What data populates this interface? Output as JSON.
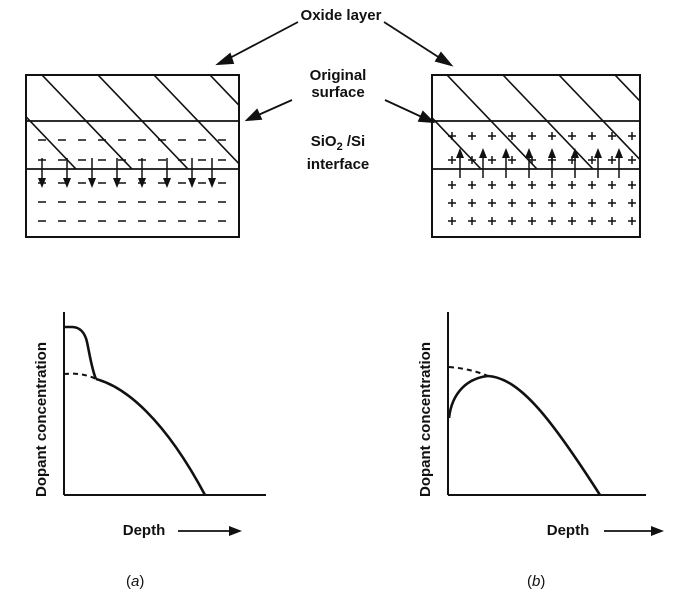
{
  "labels": {
    "oxide_layer": "Oxide layer",
    "original_line1": "Original",
    "original_line2": "surface",
    "interface_pre": "SiO",
    "interface_sub": "2",
    "interface_post": " /Si",
    "interface_line2": "interface"
  },
  "panel_a": {
    "caption_letter": "a",
    "ylabel": "Dopant concentration",
    "xlabel": "Depth",
    "sign": "minus"
  },
  "panel_b": {
    "caption_letter": "b",
    "ylabel": "Dopant concentration",
    "xlabel": "Depth",
    "sign": "plus"
  },
  "colors": {
    "ink": "#111111",
    "background": "#ffffff"
  }
}
